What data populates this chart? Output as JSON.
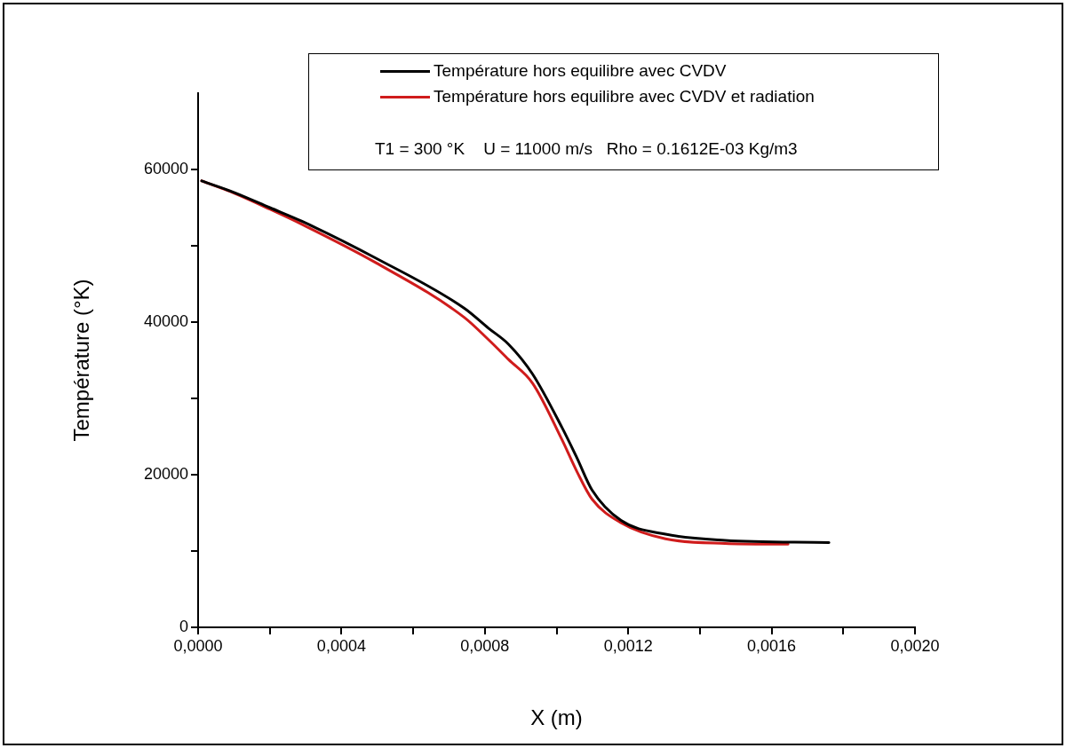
{
  "chart_data": {
    "type": "line",
    "xlabel": "X (m)",
    "ylabel": "Température (°K)",
    "annotations": [
      "T1 = 300 °K    U = 11000 m/s   Rho = 0.1612E-03 Kg/m3"
    ],
    "xlim": [
      0,
      0.002
    ],
    "ylim": [
      0,
      70000
    ],
    "xticks": [
      {
        "value": 0,
        "label": "0,0000"
      },
      {
        "value": 0.0002,
        "label": null
      },
      {
        "value": 0.0004,
        "label": "0,0004"
      },
      {
        "value": 0.0006,
        "label": null
      },
      {
        "value": 0.0008,
        "label": "0,0008"
      },
      {
        "value": 0.001,
        "label": null
      },
      {
        "value": 0.0012,
        "label": "0,0012"
      },
      {
        "value": 0.0014,
        "label": null
      },
      {
        "value": 0.0016,
        "label": "0,0016"
      },
      {
        "value": 0.0018,
        "label": null
      },
      {
        "value": 0.002,
        "label": "0,0020"
      }
    ],
    "yticks": [
      0,
      {
        "value": 10000,
        "label": null
      },
      20000,
      {
        "value": 30000,
        "label": null
      },
      40000,
      {
        "value": 50000,
        "label": null
      },
      60000
    ],
    "grid": false,
    "legend": "top right",
    "marker": "none",
    "line_style": "solid",
    "series": [
      {
        "name": "Température hors equilibre avec CVDV",
        "color": "#000000",
        "x": [
          1e-05,
          0.0001,
          0.0002,
          0.00029,
          0.000495,
          0.000743,
          0.00081,
          0.000866,
          0.000933,
          0.001015,
          0.001057,
          0.001099,
          0.00118,
          0.001304,
          0.00147,
          0.00176
        ],
        "values": [
          58500,
          57000,
          55000,
          53200,
          48400,
          41800,
          39200,
          37100,
          33200,
          26200,
          22200,
          18000,
          14000,
          12200,
          11400,
          11100
        ]
      },
      {
        "name": "Température hors equilibre avec CVDV et radiation",
        "color": "#d01c1c",
        "x": [
          1e-05,
          0.0001,
          0.0002,
          0.00029,
          0.000495,
          0.000743,
          0.00081,
          0.000866,
          0.000933,
          0.001015,
          0.001057,
          0.001099,
          0.00118,
          0.001304,
          0.00147,
          0.001646
        ],
        "values": [
          58500,
          56900,
          54800,
          52800,
          47800,
          40600,
          37700,
          35100,
          32000,
          24600,
          20400,
          16800,
          13700,
          11600,
          11000,
          10900
        ]
      }
    ]
  }
}
